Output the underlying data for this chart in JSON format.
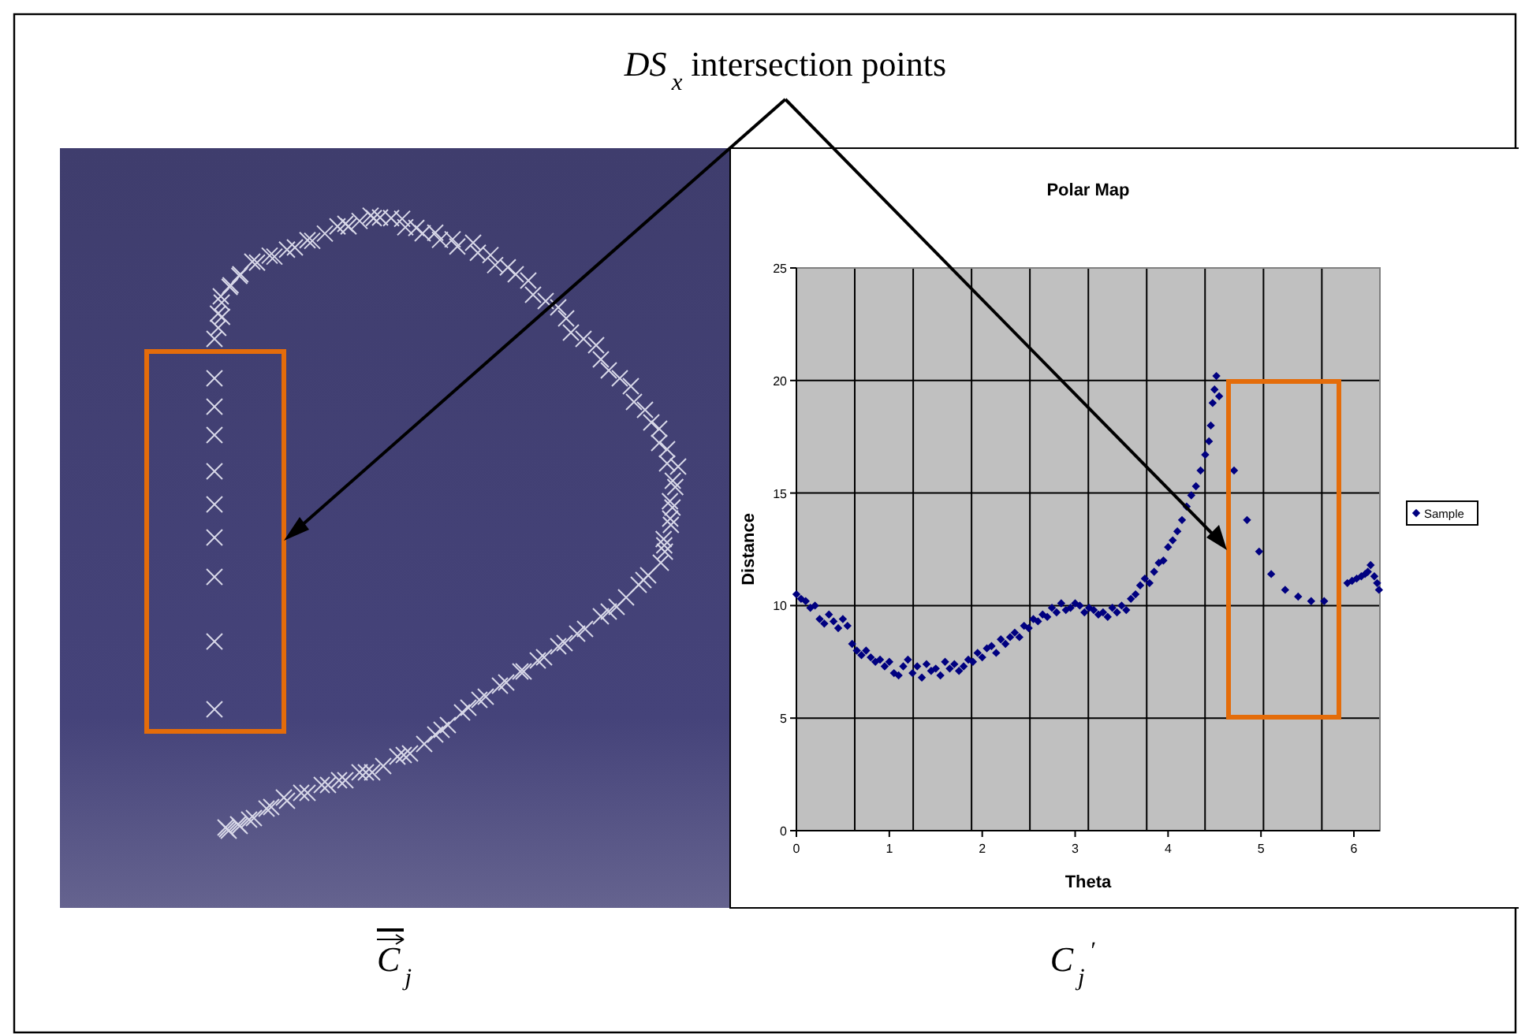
{
  "chart_data": {
    "type": "scatter",
    "title": "Polar Map",
    "xlabel": "Theta",
    "ylabel": "Distance",
    "annotations": [
      "DS$_{x}$ intersection points",
      "C$_{j}$",
      "C$_{j}$$^{′}$"
    ],
    "xlim": [
      0,
      6.28
    ],
    "ylim": [
      0,
      25
    ],
    "xticks": [
      0,
      1,
      2,
      3,
      4,
      5,
      6
    ],
    "yticks": [
      0,
      5,
      10,
      15,
      20,
      25
    ],
    "grid": "y",
    "legend": "right",
    "marker": "diamond",
    "ref_lines": [
      {
        "axis": "x",
        "value": 0.628,
        "color": "#000000"
      },
      {
        "axis": "x",
        "value": 1.257,
        "color": "#000000"
      },
      {
        "axis": "x",
        "value": 1.885,
        "color": "#000000"
      },
      {
        "axis": "x",
        "value": 2.513,
        "color": "#000000"
      },
      {
        "axis": "x",
        "value": 3.142,
        "color": "#000000"
      },
      {
        "axis": "x",
        "value": 3.77,
        "color": "#000000"
      },
      {
        "axis": "x",
        "value": 4.398,
        "color": "#000000"
      },
      {
        "axis": "x",
        "value": 5.027,
        "color": "#000000"
      },
      {
        "axis": "x",
        "value": 5.655,
        "color": "#000000"
      }
    ],
    "series": [
      {
        "name": "Sample",
        "color": "#000080",
        "x": [
          0,
          0.05,
          0.1,
          0.15,
          0.2,
          0.25,
          0.3,
          0.35,
          0.4,
          0.45,
          0.5,
          0.55,
          0.6,
          0.65,
          0.7,
          0.75,
          0.8,
          0.85,
          0.9,
          0.95,
          1.0,
          1.05,
          1.1,
          1.15,
          1.2,
          1.25,
          1.3,
          1.35,
          1.4,
          1.45,
          1.5,
          1.55,
          1.6,
          1.65,
          1.7,
          1.75,
          1.8,
          1.85,
          1.9,
          1.95,
          2.0,
          2.05,
          2.1,
          2.15,
          2.2,
          2.25,
          2.3,
          2.35,
          2.4,
          2.45,
          2.5,
          2.55,
          2.6,
          2.65,
          2.7,
          2.75,
          2.8,
          2.85,
          2.9,
          2.95,
          3.0,
          3.05,
          3.1,
          3.15,
          3.2,
          3.25,
          3.3,
          3.35,
          3.4,
          3.45,
          3.5,
          3.55,
          3.6,
          3.65,
          3.7,
          3.75,
          3.8,
          3.85,
          3.9,
          3.95,
          4.0,
          4.05,
          4.1,
          4.15,
          4.2,
          4.25,
          4.3,
          4.35,
          4.4,
          4.44,
          4.46,
          4.48,
          4.5,
          4.52,
          4.55,
          4.71,
          4.85,
          4.98,
          5.11,
          5.26,
          5.4,
          5.54,
          5.68,
          5.93,
          5.98,
          6.03,
          6.08,
          6.12,
          6.15,
          6.18,
          6.22,
          6.25,
          6.27
        ],
        "values": [
          10.5,
          10.3,
          10.2,
          9.9,
          10.0,
          9.4,
          9.2,
          9.6,
          9.3,
          9.0,
          9.4,
          9.1,
          8.3,
          8.0,
          7.8,
          8.0,
          7.7,
          7.5,
          7.6,
          7.3,
          7.5,
          7.0,
          6.9,
          7.3,
          7.6,
          7.0,
          7.3,
          6.8,
          7.4,
          7.1,
          7.2,
          6.9,
          7.5,
          7.2,
          7.4,
          7.1,
          7.3,
          7.6,
          7.5,
          7.9,
          7.7,
          8.1,
          8.2,
          7.9,
          8.5,
          8.3,
          8.6,
          8.8,
          8.6,
          9.1,
          9.0,
          9.4,
          9.3,
          9.6,
          9.5,
          9.9,
          9.7,
          10.1,
          9.8,
          9.9,
          10.1,
          10.0,
          9.7,
          9.9,
          9.8,
          9.6,
          9.7,
          9.5,
          9.9,
          9.7,
          10.0,
          9.8,
          10.3,
          10.5,
          10.9,
          11.2,
          11.0,
          11.5,
          11.9,
          12.0,
          12.6,
          12.9,
          13.3,
          13.8,
          14.4,
          14.9,
          15.3,
          16.0,
          16.7,
          17.3,
          18.0,
          19.0,
          19.6,
          20.2,
          19.3,
          16.0,
          13.8,
          12.4,
          11.4,
          10.7,
          10.4,
          10.2,
          10.2,
          11.0,
          11.1,
          11.2,
          11.3,
          11.4,
          11.5,
          11.8,
          11.3,
          11.0,
          10.7
        ]
      }
    ]
  }
}
